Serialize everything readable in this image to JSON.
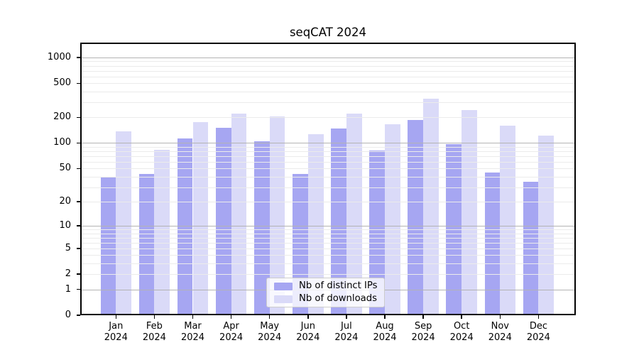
{
  "chart_data": {
    "type": "bar",
    "title": "seqCAT 2024",
    "categories": [
      "Jan",
      "Feb",
      "Mar",
      "Apr",
      "May",
      "Jun",
      "Jul",
      "Aug",
      "Sep",
      "Oct",
      "Nov",
      "Dec"
    ],
    "xtick_year": "2024",
    "series": [
      {
        "name": "Nb of distinct IPs",
        "color": "#a6a6f2",
        "values": [
          40,
          43,
          113,
          150,
          104,
          43,
          147,
          81,
          187,
          98,
          45,
          35
        ]
      },
      {
        "name": "Nb of downloads",
        "color": "#dadaf8",
        "values": [
          136,
          84,
          175,
          222,
          207,
          128,
          222,
          167,
          328,
          245,
          159,
          122
        ]
      }
    ],
    "yscale": "log1p",
    "ylim": [
      0,
      1500
    ],
    "yticks": [
      0,
      1,
      2,
      5,
      10,
      20,
      50,
      100,
      200,
      500,
      1000
    ],
    "major_gridlines": [
      1,
      10,
      100,
      1000
    ],
    "minor_gridline_decades": [
      1,
      10,
      100
    ],
    "grid": "both",
    "legend_position": "lower center",
    "colors": {
      "background": "#ffffff",
      "spine": "#000000",
      "text": "#000000",
      "grid_minor": "#ebebeb",
      "grid_major": "#b3b3b3",
      "legend_border": "#cccccc",
      "legend_bg": "rgba(255,255,255,0.8)"
    }
  }
}
